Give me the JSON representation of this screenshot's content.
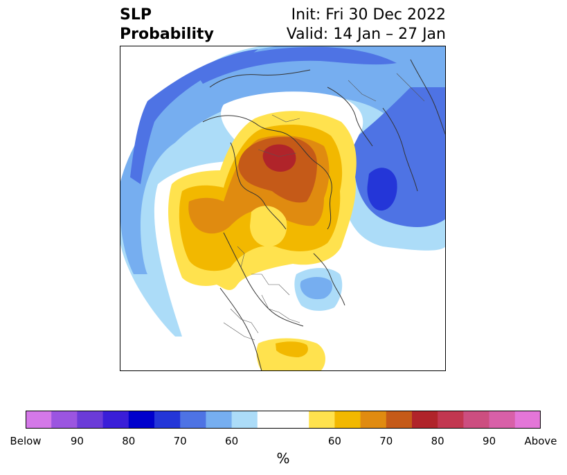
{
  "title": {
    "variable": "SLP",
    "product": "Probability",
    "init": "Init: Fri 30 Dec 2022",
    "valid": "Valid: 14 Jan – 27 Jan"
  },
  "colorbar": {
    "unit": "%",
    "colors": [
      "#d478e8",
      "#9b55e0",
      "#6b3bd8",
      "#3a1ed8",
      "#0000cc",
      "#2436d8",
      "#4e73e4",
      "#76aef0",
      "#acdcf8",
      "#ffffff",
      "#ffe24e",
      "#f2b800",
      "#e08b10",
      "#c55a18",
      "#b0242a",
      "#c23750",
      "#cc4e80",
      "#d860a8",
      "#e476d8"
    ],
    "tick_labels": [
      "Below",
      "90",
      "80",
      "70",
      "60",
      "60",
      "70",
      "80",
      "90",
      "Above"
    ]
  },
  "legend_colors": {
    "below_normal": "#4e73e4",
    "above_normal": "#e08b10"
  }
}
